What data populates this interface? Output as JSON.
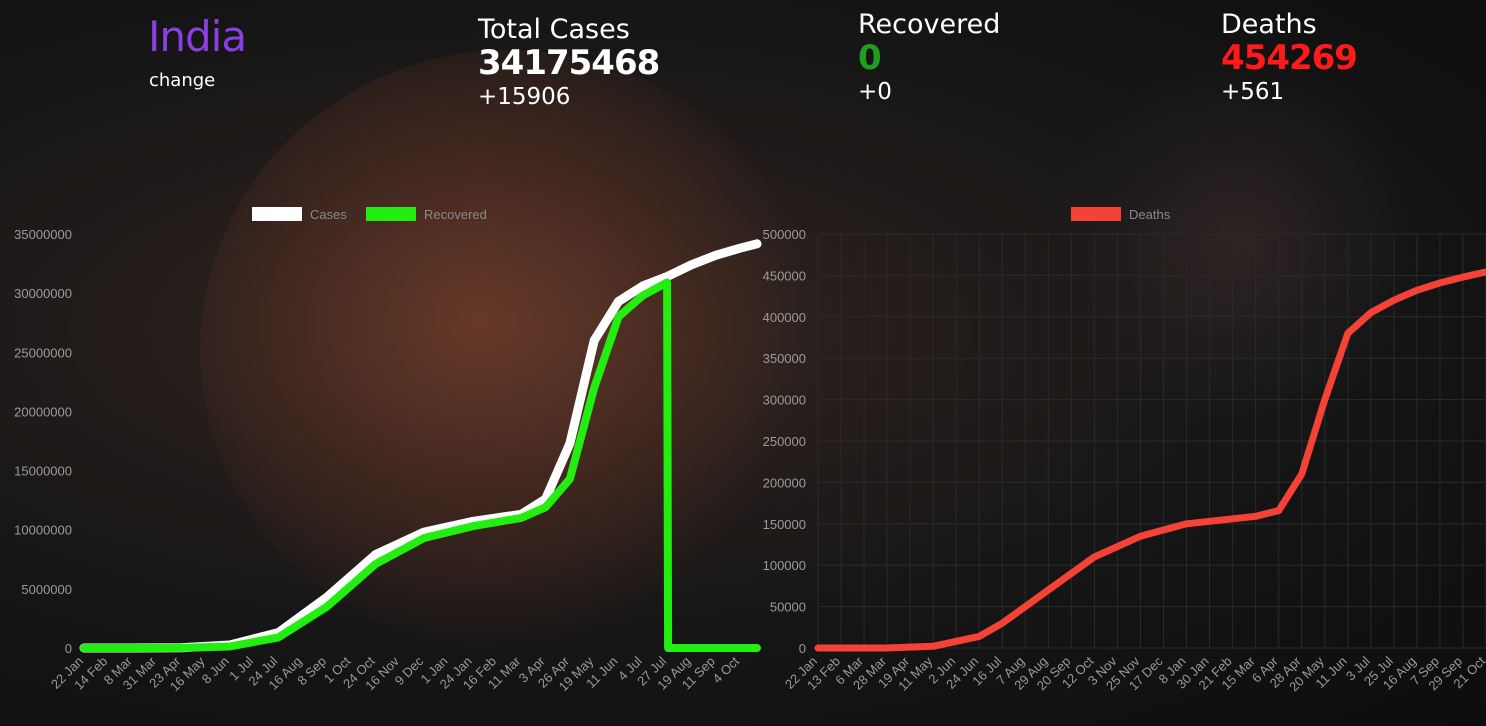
{
  "country": {
    "name": "India",
    "change_label": "change"
  },
  "stats": {
    "total": {
      "label": "Total Cases",
      "value": "34175468",
      "delta": "+15906",
      "color": "#ffffff"
    },
    "recovered": {
      "label": "Recovered",
      "value": "0",
      "delta": "+0",
      "color": "#1e9e1e"
    },
    "deaths": {
      "label": "Deaths",
      "value": "454269",
      "delta": "+561",
      "color": "#ff1a1a"
    }
  },
  "colors": {
    "cases": "#ffffff",
    "recovered": "#22ee11",
    "deaths": "#f44336",
    "axis_text": "#9a9a9a",
    "grid": "#2a2a2a"
  },
  "chart_data": [
    {
      "type": "line",
      "y_ticks": [
        0,
        5000000,
        10000000,
        15000000,
        20000000,
        25000000,
        30000000,
        35000000
      ],
      "ylim": [
        0,
        35000000
      ],
      "x_tick_labels": [
        "22 Jan",
        "14 Feb",
        "8 Mar",
        "31 Mar",
        "23 Apr",
        "16 May",
        "8 Jun",
        "1 Jul",
        "24 Jul",
        "16 Aug",
        "8 Sep",
        "1 Oct",
        "24 Oct",
        "16 Nov",
        "9 Dec",
        "1 Jan",
        "24 Jan",
        "16 Feb",
        "11 Mar",
        "3 Apr",
        "26 Apr",
        "19 May",
        "11 Jun",
        "4 Jul",
        "27 Jul",
        "19 Aug",
        "11 Sep",
        "4 Oct"
      ],
      "legend": [
        "Cases",
        "Recovered"
      ],
      "series": [
        {
          "name": "Cases",
          "x": [
            "22 Jan",
            "8 Mar",
            "23 Apr",
            "8 Jun",
            "24 Jul",
            "8 Sep",
            "24 Oct",
            "9 Dec",
            "24 Jan",
            "11 Mar",
            "3 Apr",
            "26 Apr",
            "19 May",
            "11 Jun",
            "4 Jul",
            "27 Jul",
            "19 Aug",
            "11 Sep",
            "4 Oct",
            "20 Oct"
          ],
          "values": [
            0,
            0,
            20000,
            250000,
            1300000,
            4300000,
            7900000,
            9800000,
            10700000,
            11300000,
            12600000,
            17300000,
            26000000,
            29300000,
            30600000,
            31400000,
            32400000,
            33200000,
            33800000,
            34175468
          ]
        },
        {
          "name": "Recovered",
          "x": [
            "22 Jan",
            "8 Mar",
            "23 Apr",
            "8 Jun",
            "24 Jul",
            "8 Sep",
            "24 Oct",
            "9 Dec",
            "24 Jan",
            "11 Mar",
            "3 Apr",
            "26 Apr",
            "19 May",
            "11 Jun",
            "4 Jul",
            "27 Jul",
            "28 Jul",
            "19 Aug",
            "11 Sep",
            "4 Oct",
            "20 Oct"
          ],
          "values": [
            0,
            0,
            5000,
            130000,
            900000,
            3500000,
            7100000,
            9300000,
            10300000,
            11000000,
            11900000,
            14300000,
            22000000,
            28000000,
            29800000,
            30900000,
            0,
            0,
            0,
            0,
            0
          ]
        }
      ]
    },
    {
      "type": "line",
      "y_ticks": [
        0,
        50000,
        100000,
        150000,
        200000,
        250000,
        300000,
        350000,
        400000,
        450000,
        500000
      ],
      "ylim": [
        0,
        500000
      ],
      "x_tick_labels": [
        "22 Jan",
        "13 Feb",
        "6 Mar",
        "28 Mar",
        "19 Apr",
        "11 May",
        "2 Jun",
        "24 Jun",
        "16 Jul",
        "7 Aug",
        "29 Aug",
        "20 Sep",
        "12 Oct",
        "3 Nov",
        "25 Nov",
        "17 Dec",
        "8 Jan",
        "30 Jan",
        "21 Feb",
        "15 Mar",
        "6 Apr",
        "28 Apr",
        "20 May",
        "11 Jun",
        "3 Jul",
        "25 Jul",
        "16 Aug",
        "7 Sep",
        "29 Sep",
        "21 Oct"
      ],
      "legend": [
        "Deaths"
      ],
      "series": [
        {
          "name": "Deaths",
          "x": [
            "22 Jan",
            "28 Mar",
            "11 May",
            "24 Jun",
            "16 Jul",
            "29 Aug",
            "12 Oct",
            "25 Nov",
            "8 Jan",
            "21 Feb",
            "15 Mar",
            "6 Apr",
            "28 Apr",
            "20 May",
            "11 Jun",
            "3 Jul",
            "25 Jul",
            "16 Aug",
            "7 Sep",
            "29 Sep",
            "21 Oct"
          ],
          "values": [
            0,
            0,
            2000,
            14000,
            30000,
            70000,
            110000,
            135000,
            150000,
            156000,
            159000,
            166000,
            210000,
            300000,
            380000,
            405000,
            420000,
            432000,
            441000,
            448000,
            454269
          ]
        }
      ]
    }
  ]
}
